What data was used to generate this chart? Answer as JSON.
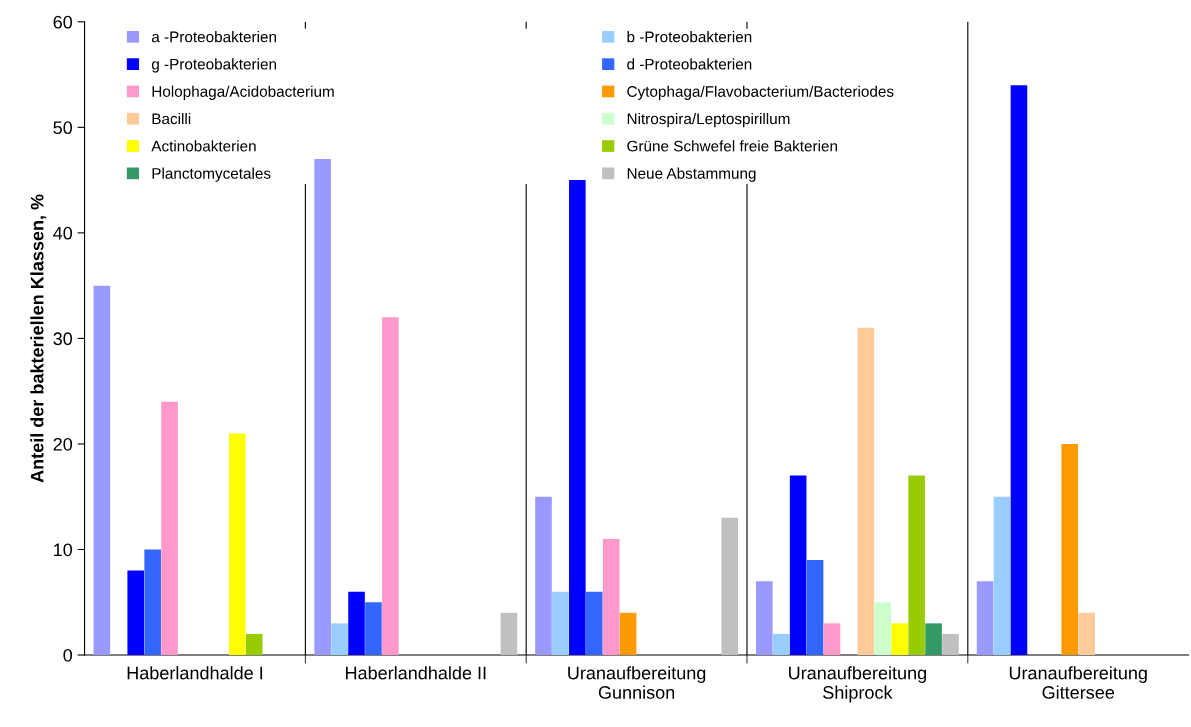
{
  "chart_data": {
    "type": "bar",
    "ylabel": "Anteil der bakteriellen Klassen, %",
    "categories": [
      "Haberlandhalde I",
      "Haberlandhalde II",
      "Uranaufbereitung\nGunnison",
      "Uranaufbereitung\nShiprock",
      "Uranaufbereitung\nGittersee"
    ],
    "series": [
      {
        "name": "a -Proteobakterien",
        "color": "#9999ff",
        "values": [
          35,
          47,
          15,
          7,
          7
        ]
      },
      {
        "name": "b -Proteobakterien",
        "color": "#99ccff",
        "values": [
          null,
          3,
          6,
          2,
          15
        ]
      },
      {
        "name": "g -Proteobakterien",
        "color": "#0000ff",
        "values": [
          8,
          6,
          45,
          17,
          54
        ]
      },
      {
        "name": "d -Proteobakterien",
        "color": "#3366ff",
        "values": [
          10,
          5,
          6,
          9,
          null
        ]
      },
      {
        "name": "Holophaga/Acidobacterium",
        "color": "#ff99cc",
        "values": [
          24,
          32,
          11,
          3,
          null
        ]
      },
      {
        "name": "Cytophaga/Flavobacterium/Bacteriodes",
        "color": "#ff9900",
        "values": [
          null,
          null,
          4,
          null,
          20
        ]
      },
      {
        "name": "Bacilli",
        "color": "#ffcc99",
        "values": [
          null,
          null,
          null,
          31,
          4
        ]
      },
      {
        "name": "Nitrospira/Leptospirillum",
        "color": "#ccffcc",
        "values": [
          null,
          null,
          null,
          5,
          null
        ]
      },
      {
        "name": "Actinobakterien",
        "color": "#ffff00",
        "values": [
          21,
          null,
          null,
          3,
          null
        ]
      },
      {
        "name": "Grüne Schwefel freie Bakterien",
        "color": "#99cc00",
        "values": [
          2,
          null,
          null,
          17,
          null
        ]
      },
      {
        "name": "Planctomycetales",
        "color": "#339966",
        "values": [
          null,
          null,
          null,
          3,
          null
        ]
      },
      {
        "name": "Neue Abstammung",
        "color": "#c0c0c0",
        "values": [
          null,
          4,
          13,
          2,
          null
        ]
      }
    ],
    "ylim": [
      0,
      60
    ],
    "yticks": [
      0,
      10,
      20,
      30,
      40,
      50,
      60
    ],
    "grid": "x",
    "legend": "top left"
  }
}
